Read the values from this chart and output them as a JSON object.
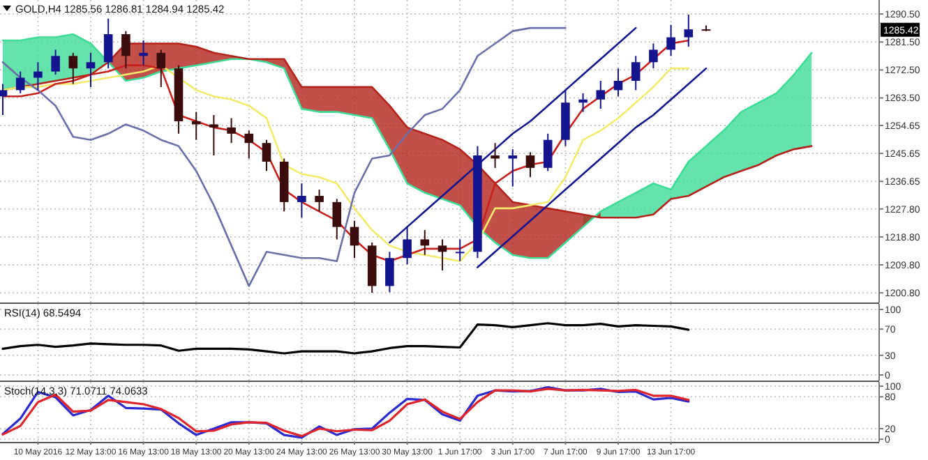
{
  "chart_data": [
    {
      "type": "candlestick",
      "title": "GOLD,H4 1285.56 1286.81 1284.94 1285.42",
      "ylim": [
        1197.7,
        1295
      ],
      "grid": true,
      "tick_labels": "y",
      "categories": [
        null,
        null,
        null,
        null,
        null,
        null,
        null,
        null,
        null,
        null,
        null,
        null,
        null,
        null,
        null,
        null,
        null,
        null,
        null,
        null,
        null,
        null,
        null,
        null,
        null,
        null,
        null,
        null,
        null,
        null,
        null,
        null,
        null,
        null,
        null,
        null,
        null,
        null,
        null,
        null,
        null,
        null,
        null,
        null,
        null,
        null,
        null,
        null,
        null,
        null
      ],
      "yticks": [
        {
          "value": 1290.5,
          "label": "1290.50"
        },
        {
          "value": 1281.5,
          "label": "1281.50"
        },
        {
          "value": 1272.5,
          "label": "1272.50"
        },
        {
          "value": 1263.5,
          "label": "1263.50"
        },
        {
          "value": 1254.65,
          "label": "1254.65"
        },
        {
          "value": 1245.65,
          "label": "1245.65"
        },
        {
          "value": 1236.65,
          "label": "1236.65"
        },
        {
          "value": 1227.8,
          "label": "1227.80"
        },
        {
          "value": 1218.8,
          "label": "1218.80"
        },
        {
          "value": 1209.8,
          "label": "1209.80"
        },
        {
          "value": 1200.8,
          "label": "1200.80"
        }
      ],
      "ohlc": [
        [
          1264,
          1268,
          1258,
          1266
        ],
        [
          1266,
          1272,
          1265,
          1270
        ],
        [
          1270,
          1275,
          1266,
          1272
        ],
        [
          1272,
          1279,
          1271,
          1277
        ],
        [
          1277,
          1278,
          1268,
          1273
        ],
        [
          1273,
          1278,
          1267,
          1275
        ],
        [
          1275,
          1289,
          1273,
          1284
        ],
        [
          1284,
          1285,
          1273,
          1277
        ],
        [
          1277,
          1282,
          1274,
          1278
        ],
        [
          1278,
          1279,
          1267,
          1273
        ],
        [
          1273,
          1274,
          1252,
          1256
        ],
        [
          1256,
          1259,
          1250,
          1255
        ],
        [
          1255,
          1258,
          1245,
          1254
        ],
        [
          1254,
          1257,
          1249,
          1252
        ],
        [
          1252,
          1253,
          1244,
          1249
        ],
        [
          1249,
          1250,
          1240,
          1243
        ],
        [
          1243,
          1244,
          1227,
          1230
        ],
        [
          1230,
          1236,
          1225,
          1232
        ],
        [
          1232,
          1234,
          1227,
          1230
        ],
        [
          1230,
          1231,
          1218,
          1222
        ],
        [
          1222,
          1224,
          1212,
          1216
        ],
        [
          1216,
          1217,
          1200.8,
          1203
        ],
        [
          1203,
          1214,
          1201,
          1212
        ],
        [
          1212,
          1222,
          1210,
          1218
        ],
        [
          1218,
          1221,
          1213,
          1216
        ],
        [
          1216,
          1218,
          1208,
          1214
        ],
        [
          1214,
          1218,
          1211,
          1214
        ],
        [
          1214,
          1248,
          1212,
          1245
        ],
        [
          1245,
          1249,
          1241,
          1244
        ],
        [
          1244,
          1247,
          1235,
          1245
        ],
        [
          1245,
          1246,
          1238,
          1241
        ],
        [
          1241,
          1252,
          1240,
          1250
        ],
        [
          1250,
          1266,
          1248,
          1262
        ],
        [
          1262,
          1265,
          1259,
          1263
        ],
        [
          1263,
          1269,
          1260,
          1266
        ],
        [
          1266,
          1273,
          1264,
          1269
        ],
        [
          1269,
          1277,
          1266,
          1275
        ],
        [
          1275,
          1281,
          1273,
          1279
        ],
        [
          1279,
          1287,
          1277,
          1283
        ],
        [
          1283,
          1290.3,
          1280,
          1285.56
        ],
        [
          1285.56,
          1286.81,
          1284.94,
          1285.42
        ],
        null,
        null,
        null,
        null,
        null,
        null,
        null,
        null,
        null
      ],
      "series": [
        {
          "type": "line",
          "color": "#3ddc97",
          "values": [
            1282,
            1282,
            1283,
            1283,
            1284,
            1281,
            1275,
            1269,
            1270,
            1272,
            1273,
            1274,
            1275,
            1276,
            1276,
            1275,
            1273,
            1260,
            1259,
            1259,
            1258,
            1257,
            1247,
            1236,
            1233,
            1231,
            1229,
            1222,
            1217,
            1213,
            1212,
            1212,
            1217,
            1222,
            1227,
            1230,
            1233,
            1236,
            1234,
            1243,
            1248,
            1253,
            1259,
            1262,
            1265,
            1271,
            1278,
            null,
            null,
            null
          ],
          "lower": [
            1266,
            1267,
            1268,
            1269,
            1270,
            1271,
            1275,
            null,
            null,
            null,
            null,
            null,
            null,
            null,
            null,
            null,
            null,
            null,
            null,
            null,
            null,
            null,
            null,
            null,
            null,
            null,
            null,
            null,
            null,
            null,
            null,
            null,
            null,
            1226,
            1225,
            1225,
            1225,
            1226,
            1231,
            1232,
            1235,
            1238,
            1240,
            1242,
            1245,
            1247,
            1248,
            null,
            null,
            null
          ],
          "upper": [
            1282,
            1282,
            1283,
            1283,
            1284,
            1281,
            1275,
            null,
            null,
            null,
            null,
            null,
            null,
            null,
            null,
            null,
            null,
            null,
            null,
            null,
            null,
            null,
            null,
            null,
            null,
            null,
            null,
            null,
            null,
            null,
            null,
            null,
            null,
            1222,
            1227,
            1230,
            1233,
            1236,
            1234,
            1243,
            1248,
            1253,
            1259,
            1262,
            1265,
            1271,
            1278,
            null,
            null,
            null
          ]
        },
        {
          "type": "line",
          "color": "#b3231a",
          "lower": [
            null,
            null,
            null,
            null,
            null,
            null,
            1275,
            1269,
            1270,
            1272,
            1273,
            1274,
            1275,
            1276,
            1276,
            1275,
            1273,
            1260,
            1259,
            1259,
            1258,
            1257,
            1247,
            1236,
            1233,
            1231,
            1229,
            1222,
            1217,
            1213,
            1212,
            1212,
            1217,
            1222,
            1227,
            null,
            null,
            null,
            null,
            null,
            null,
            null,
            null,
            null,
            null,
            null,
            null,
            null,
            null,
            null
          ],
          "upper": [
            null,
            null,
            null,
            null,
            null,
            null,
            1275,
            1281,
            1281,
            1281,
            1281,
            1280,
            1278,
            1277,
            1276,
            1276,
            1276,
            1267,
            1267,
            1267,
            1267,
            1267,
            1261,
            1254,
            1252,
            1250,
            1247,
            1242,
            1236,
            1230,
            1229,
            1228,
            1227,
            1226,
            1225,
            null,
            null,
            null,
            null,
            null,
            null,
            null,
            null,
            null,
            null,
            null,
            null,
            null,
            null,
            null
          ],
          "values": [
            1266,
            1267,
            1268,
            1269,
            1270,
            1271,
            1275,
            1281,
            1281,
            1281,
            1281,
            1280,
            1278,
            1277,
            1276,
            1276,
            1276,
            1267,
            1267,
            1267,
            1267,
            1267,
            1261,
            1254,
            1252,
            1250,
            1247,
            1242,
            1236,
            1230,
            1229,
            1228,
            1227,
            1226,
            1225,
            1225,
            1225,
            1226,
            1231,
            1232,
            1235,
            1238,
            1240,
            1242,
            1245,
            1247,
            1248,
            null,
            null,
            null
          ]
        },
        {
          "type": "line",
          "color": "#f2ec6a",
          "values": [
            1266,
            1267,
            1267,
            1268,
            1268,
            1269,
            1270,
            1271,
            1272,
            1274,
            1270,
            1266,
            1264,
            1263,
            1261,
            1257,
            1242,
            1239,
            1238,
            1236,
            1228,
            1221,
            1216,
            1214,
            1213,
            1212,
            1211,
            1217,
            1228,
            1228,
            1229,
            1230,
            1238,
            1250,
            1253,
            1257,
            1262,
            1267,
            1273,
            1273,
            null,
            null,
            null,
            null,
            null,
            null,
            null,
            null,
            null,
            null
          ]
        },
        {
          "type": "line",
          "color": "#c8201c",
          "values": [
            1264,
            1264,
            1265,
            1268,
            1269,
            1271,
            1272,
            1274,
            1274,
            1273,
            1258,
            1256,
            1254,
            1253,
            1250,
            1246,
            1234,
            1230,
            1227,
            1224,
            1218,
            1213,
            1211,
            1213,
            1215,
            1215,
            1215,
            1218,
            1236,
            1240,
            1242,
            1243,
            1252,
            1260,
            1264,
            1268,
            1271,
            1276,
            1281,
            1282,
            null,
            null,
            null,
            null,
            null,
            null,
            null,
            null,
            null,
            null
          ]
        },
        {
          "type": "line",
          "color": "#6a6fa8",
          "values": [
            1275,
            1270,
            1266,
            1261,
            1251,
            1250,
            1252,
            1255,
            1253,
            1250,
            1248,
            1240,
            1229,
            1216,
            1203,
            1214,
            1213,
            1212,
            1212,
            1211,
            1233,
            1244,
            1245,
            1252,
            1258,
            1260,
            1266,
            1277,
            1281,
            1285,
            1286,
            1286,
            1286,
            null,
            null,
            null,
            null,
            null,
            null,
            null,
            null,
            null,
            null,
            null,
            null,
            null,
            null,
            null,
            null,
            null
          ]
        },
        {
          "type": "line",
          "color": "#14148f",
          "values": [
            null,
            null,
            null,
            null,
            null,
            null,
            null,
            null,
            null,
            null,
            null,
            null,
            null,
            null,
            null,
            null,
            null,
            null,
            null,
            null,
            null,
            null,
            1217,
            1222,
            1227,
            1232,
            1237,
            1242,
            1247,
            1252,
            1256,
            1261,
            1266,
            1271,
            1276,
            1281,
            1286,
            null,
            null,
            null,
            null,
            null,
            null,
            null,
            null,
            null,
            null,
            null,
            null,
            null
          ]
        },
        {
          "type": "line",
          "color": "#14148f",
          "values": [
            null,
            null,
            null,
            null,
            null,
            null,
            null,
            null,
            null,
            null,
            null,
            null,
            null,
            null,
            null,
            null,
            null,
            null,
            null,
            null,
            null,
            null,
            null,
            null,
            null,
            null,
            null,
            1209,
            1214,
            1219,
            1224,
            1229,
            1234,
            1239,
            1244,
            1249,
            1254,
            1258,
            1263,
            1268,
            1273,
            null,
            null,
            null,
            null,
            null,
            null,
            null,
            null,
            null
          ]
        }
      ],
      "annotations": [
        {
          "text": "1285.42",
          "y": 1285.42
        }
      ]
    },
    {
      "type": "line",
      "title": "RSI(14) 68.5494",
      "ylim": [
        -8.5,
        108.5
      ],
      "grid": true,
      "tick_labels": "y",
      "categories": [
        null,
        null,
        null,
        null,
        null,
        null,
        null,
        null,
        null,
        null,
        null,
        null,
        null,
        null,
        null,
        null,
        null,
        null,
        null,
        null,
        null,
        null,
        null,
        null,
        null,
        null,
        null,
        null,
        null,
        null,
        null,
        null,
        null,
        null,
        null,
        null,
        null,
        null,
        null,
        null,
        null,
        null,
        null,
        null,
        null,
        null,
        null,
        null,
        null,
        null
      ],
      "yticks": [
        100,
        70,
        30,
        0
      ],
      "series": [
        {
          "color": "#000000",
          "values": [
            40,
            44,
            46,
            43,
            45,
            48,
            47,
            46,
            46,
            45,
            37,
            40,
            40,
            40,
            39,
            36,
            33,
            36,
            36,
            36,
            33,
            36,
            41,
            44,
            44,
            43,
            42,
            77,
            76,
            73,
            76,
            79,
            76,
            76,
            78,
            74,
            76,
            75,
            74,
            69,
            null,
            null,
            null,
            null,
            null,
            null,
            null,
            null,
            null,
            null
          ]
        }
      ]
    },
    {
      "type": "line",
      "title": "Stoch(14,3,3) 71.0711 74.0633",
      "ylim": [
        -5,
        108
      ],
      "grid": true,
      "categories": [
        null,
        null,
        "10 May 2016",
        null,
        null,
        "12 May 13:00",
        null,
        null,
        "16 May 13:00",
        null,
        null,
        "18 May 13:00",
        null,
        null,
        "20 May 13:00",
        null,
        null,
        "24 May 13:00",
        null,
        null,
        "26 May 13:00",
        null,
        null,
        "30 May 13:00",
        null,
        null,
        "1 Jun 17:00",
        null,
        null,
        "3 Jun 17:00",
        null,
        null,
        "7 Jun 17:00",
        null,
        null,
        "9 Jun 17:00",
        null,
        null,
        "13 Jun 17:00",
        null,
        null,
        null,
        null,
        null,
        null,
        null,
        null,
        null,
        null,
        null
      ],
      "yticks": [
        100,
        80,
        20,
        0
      ],
      "series": [
        {
          "color": "#2a2ad0",
          "values": [
            10,
            39,
            89,
            79,
            45,
            55,
            82,
            59,
            58,
            56,
            30,
            8,
            20,
            32,
            32,
            30,
            8,
            3,
            24,
            8,
            19,
            20,
            50,
            76,
            74,
            47,
            35,
            82,
            92,
            90,
            91,
            98,
            92,
            92,
            95,
            89,
            90,
            75,
            78,
            71,
            null,
            null,
            null,
            null,
            null,
            null,
            null,
            null,
            null,
            null
          ]
        },
        {
          "color": "#e0242c",
          "values": [
            9,
            25,
            70,
            84,
            52,
            54,
            74,
            70,
            66,
            57,
            40,
            15,
            16,
            28,
            32,
            31,
            16,
            6,
            20,
            15,
            18,
            17,
            35,
            66,
            75,
            52,
            38,
            70,
            92,
            92,
            90,
            95,
            92,
            93,
            92,
            91,
            93,
            82,
            82,
            74,
            null,
            null,
            null,
            null,
            null,
            null,
            null,
            null,
            null,
            null
          ]
        }
      ]
    }
  ]
}
